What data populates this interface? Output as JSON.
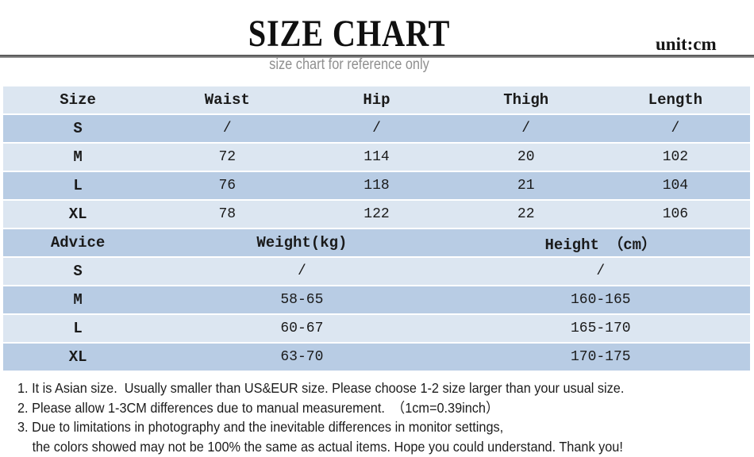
{
  "header": {
    "title": "SIZE CHART",
    "unit": "unit:cm",
    "subtitle": "size chart for reference only"
  },
  "colors": {
    "row_dark": "#b8cce4",
    "row_light": "#dce6f1",
    "divider_gray": "#6f6f6f",
    "subtitle_gray": "#8f8f8f",
    "text": "#1a1a1a"
  },
  "chart_data": {
    "type": "table",
    "title": "SIZE CHART",
    "unit": "cm",
    "sections": [
      {
        "columns": [
          "Size",
          "Waist",
          "Hip",
          "Thigh",
          "Length"
        ],
        "rows": [
          [
            "S",
            "/",
            "/",
            "/",
            "/"
          ],
          [
            "M",
            "72",
            "114",
            "20",
            "102"
          ],
          [
            "L",
            "76",
            "118",
            "21",
            "104"
          ],
          [
            "XL",
            "78",
            "122",
            "22",
            "106"
          ]
        ]
      },
      {
        "columns": [
          "Advice",
          "Weight(kg)",
          "Height （cm）"
        ],
        "rows": [
          [
            "S",
            "/",
            "/"
          ],
          [
            "M",
            "58-65",
            "160-165"
          ],
          [
            "L",
            "60-67",
            "165-170"
          ],
          [
            "XL",
            "63-70",
            "170-175"
          ]
        ]
      }
    ]
  },
  "notes": {
    "lines": [
      "1. It is Asian size.  Usually smaller than US&EUR size. Please choose 1-2 size larger than your usual size.",
      "2. Please allow 1-3CM differences due to manual measurement.  （1cm=0.39inch）",
      "3. Due to limitations in photography and the inevitable differences in monitor settings,",
      "the colors showed may not be 100% the same as actual items. Hope you could understand. Thank you!"
    ]
  }
}
